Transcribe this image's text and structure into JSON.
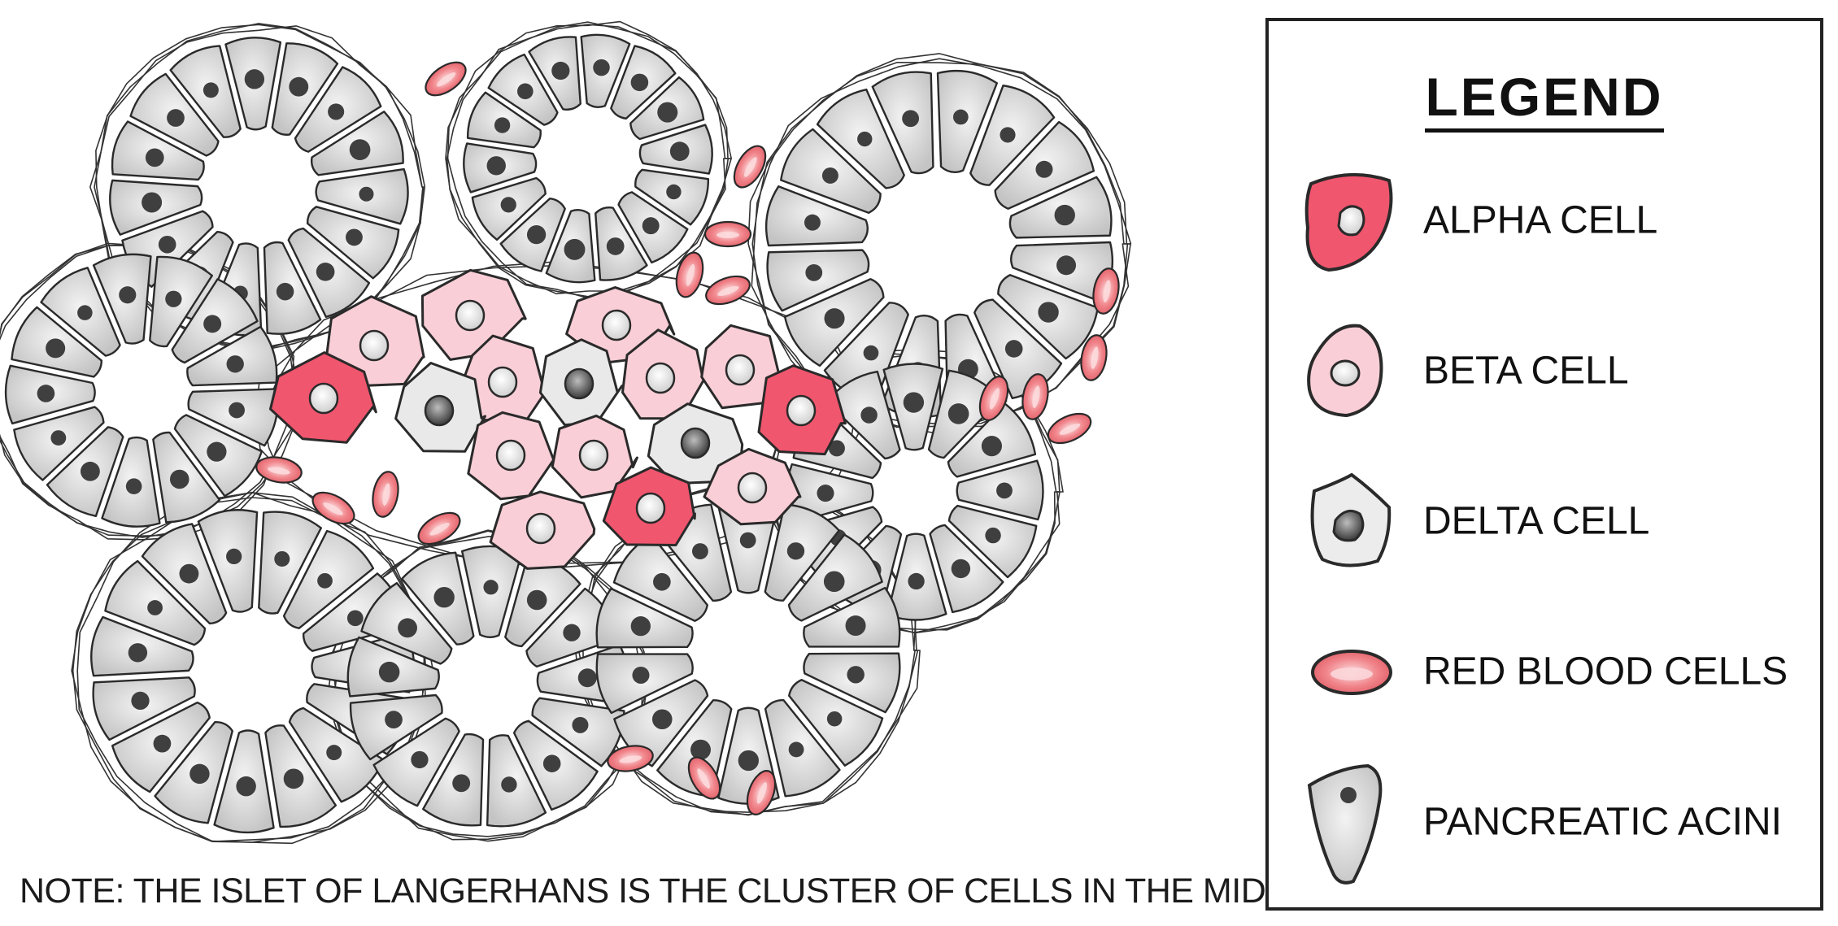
{
  "note": "NOTE: THE ISLET OF LANGERHANS IS THE CLUSTER OF CELLS IN THE MIDDLE",
  "legend": {
    "title": "LEGEND",
    "items": [
      {
        "key": "alpha",
        "label": "ALPHA CELL"
      },
      {
        "key": "beta",
        "label": "BETA CELL"
      },
      {
        "key": "delta",
        "label": "DELTA CELL"
      },
      {
        "key": "rbc",
        "label": "RED BLOOD CELLS"
      },
      {
        "key": "acini",
        "label": "PANCREATIC ACINI"
      }
    ]
  },
  "colors": {
    "alpha": "#f0566e",
    "beta": "#f9ced6",
    "delta": "#e9e9e9",
    "acinar": "#d6d6d6",
    "rbc": "#f07c84",
    "outline": "#2a2a2a",
    "nucleus": "#3f3f3f"
  }
}
